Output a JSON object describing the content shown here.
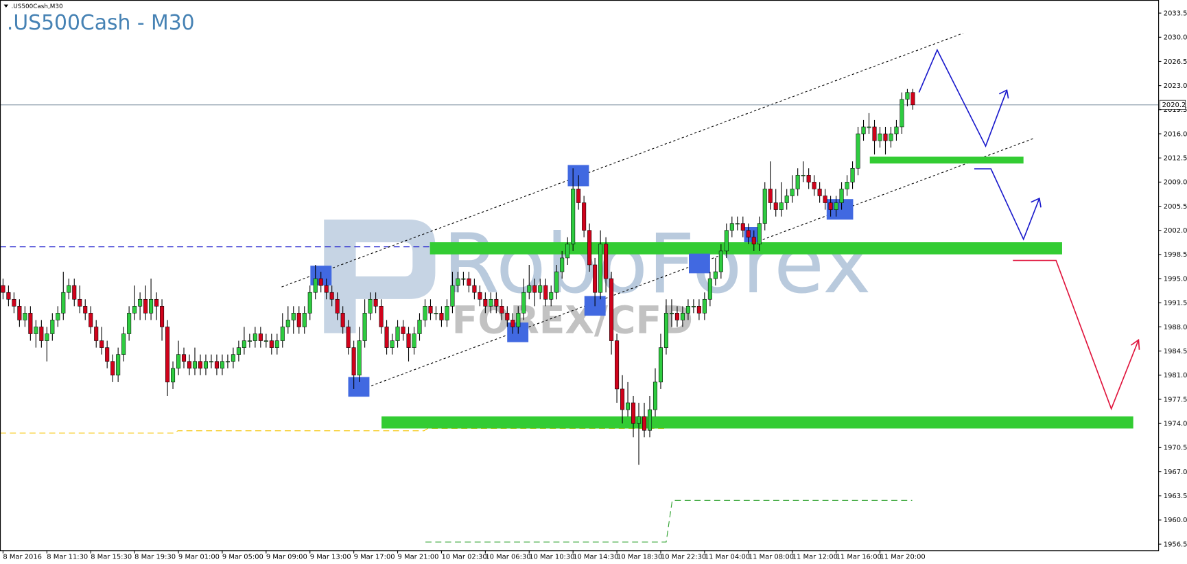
{
  "chart_data": {
    "type": "candlestick",
    "header": ".US500Cash,M30",
    "title": ".US500Cash - M30",
    "watermark": {
      "brand": "RoboForex",
      "tagline": "FOREX/CFD"
    },
    "current_price": 2020.2,
    "ylim": [
      1955.6,
      2035.4
    ],
    "yticks": [
      2033.5,
      {
        "value": 2030,
        "label": "2030.0"
      },
      2026.5,
      {
        "value": 2023,
        "label": "2023.0"
      },
      2019.5,
      {
        "value": 2016,
        "label": "2016.0"
      },
      2012.5,
      {
        "value": 2009,
        "label": "2009.0"
      },
      2005.5,
      {
        "value": 2002,
        "label": "2002.0"
      },
      1998.5,
      {
        "value": 1995,
        "label": "1995.0"
      },
      1991.5,
      {
        "value": 1988,
        "label": "1988.0"
      },
      1984.5,
      {
        "value": 1981,
        "label": "1981.0"
      },
      1977.5,
      {
        "value": 1974,
        "label": "1974.0"
      },
      1970.5,
      {
        "value": 1967,
        "label": "1967.0"
      },
      1963.5,
      {
        "value": 1960,
        "label": "1960.0"
      },
      1956.5
    ],
    "up_color": "#2ecc40",
    "down_color": "#d0021b",
    "categories": [
      "8 Mar 2016",
      null,
      null,
      null,
      null,
      null,
      null,
      null,
      "8 Mar 11:30",
      null,
      null,
      null,
      null,
      null,
      null,
      null,
      "8 Mar 15:30",
      null,
      null,
      null,
      null,
      null,
      null,
      null,
      "8 Mar 19:30",
      null,
      null,
      null,
      null,
      null,
      null,
      null,
      "9 Mar 01:00",
      null,
      null,
      null,
      null,
      null,
      null,
      null,
      "9 Mar 05:00",
      null,
      null,
      null,
      null,
      null,
      null,
      null,
      "9 Mar 09:00",
      null,
      null,
      null,
      null,
      null,
      null,
      null,
      "9 Mar 13:00",
      null,
      null,
      null,
      null,
      null,
      null,
      null,
      "9 Mar 17:00",
      null,
      null,
      null,
      null,
      null,
      null,
      null,
      "9 Mar 21:00",
      null,
      null,
      null,
      null,
      null,
      null,
      null,
      "10 Mar 02:30",
      null,
      null,
      null,
      null,
      null,
      null,
      null,
      "10 Mar 06:30",
      null,
      null,
      null,
      null,
      null,
      null,
      null,
      "10 Mar 10:30",
      null,
      null,
      null,
      null,
      null,
      null,
      null,
      "10 Mar 14:30",
      null,
      null,
      null,
      null,
      null,
      null,
      null,
      "10 Mar 18:30",
      null,
      null,
      null,
      null,
      null,
      null,
      null,
      "10 Mar 22:30",
      null,
      null,
      null,
      null,
      null,
      null,
      null,
      "11 Mar 04:00",
      null,
      null,
      null,
      null,
      null,
      null,
      null,
      "11 Mar 08:00",
      null,
      null,
      null,
      null,
      null,
      null,
      null,
      "11 Mar 12:00",
      null,
      null,
      null,
      null,
      null,
      null,
      null,
      "11 Mar 16:00",
      null,
      null,
      null,
      null,
      null,
      null,
      null,
      "11 Mar 20:00",
      null,
      null,
      null,
      null,
      null,
      null
    ],
    "candles": [
      [
        1994,
        1995,
        1992,
        1993
      ],
      [
        1993,
        1994,
        1991,
        1992
      ],
      [
        1992,
        1993,
        1990,
        1991
      ],
      [
        1991,
        1992,
        1988,
        1989
      ],
      [
        1989,
        1991,
        1988,
        1990
      ],
      [
        1990,
        1991,
        1986,
        1987
      ],
      [
        1987,
        1989,
        1985,
        1988
      ],
      [
        1988,
        1989,
        1985,
        1986
      ],
      [
        1986,
        1988,
        1983,
        1987
      ],
      [
        1987,
        1990,
        1986,
        1989
      ],
      [
        1989,
        1991,
        1988,
        1990
      ],
      [
        1990,
        1996,
        1989,
        1993
      ],
      [
        1993,
        1995,
        1992,
        1994
      ],
      [
        1994,
        1995,
        1991,
        1992
      ],
      [
        1992,
        1994,
        1990,
        1991
      ],
      [
        1991,
        1992,
        1989,
        1990
      ],
      [
        1990,
        1991,
        1987,
        1988
      ],
      [
        1988,
        1989,
        1985,
        1986
      ],
      [
        1986,
        1988,
        1984,
        1985
      ],
      [
        1985,
        1986,
        1982,
        1983
      ],
      [
        1983,
        1984,
        1980,
        1981
      ],
      [
        1981,
        1985,
        1980,
        1984
      ],
      [
        1984,
        1988,
        1983,
        1987
      ],
      [
        1987,
        1991,
        1986,
        1990
      ],
      [
        1990,
        1994,
        1989,
        1991
      ],
      [
        1991,
        1993,
        1989,
        1992
      ],
      [
        1992,
        1994,
        1989,
        1990
      ],
      [
        1990,
        1995,
        1989,
        1992
      ],
      [
        1992,
        1993,
        1989,
        1991
      ],
      [
        1991,
        1992,
        1986,
        1988
      ],
      [
        1988,
        1989,
        1978,
        1980
      ],
      [
        1980,
        1983,
        1979,
        1982
      ],
      [
        1982,
        1986,
        1981,
        1984
      ],
      [
        1984,
        1985,
        1982,
        1983
      ],
      [
        1983,
        1984,
        1981,
        1982
      ],
      [
        1982,
        1985,
        1981,
        1983
      ],
      [
        1983,
        1984,
        1981,
        1982
      ],
      [
        1982,
        1984,
        1981,
        1983
      ],
      [
        1983,
        1984,
        1982,
        1983
      ],
      [
        1983,
        1984,
        1981,
        1982
      ],
      [
        1982,
        1984,
        1981,
        1983
      ],
      [
        1983,
        1984,
        1982,
        1983
      ],
      [
        1983,
        1985,
        1982,
        1984
      ],
      [
        1984,
        1986,
        1983,
        1985
      ],
      [
        1985,
        1988,
        1984,
        1986
      ],
      [
        1986,
        1987,
        1985,
        1986
      ],
      [
        1986,
        1988,
        1985,
        1987
      ],
      [
        1987,
        1988,
        1985,
        1986
      ],
      [
        1986,
        1987,
        1985,
        1986
      ],
      [
        1986,
        1987,
        1984,
        1985
      ],
      [
        1985,
        1987,
        1984,
        1986
      ],
      [
        1986,
        1990,
        1985,
        1988
      ],
      [
        1988,
        1991,
        1987,
        1989
      ],
      [
        1989,
        1991,
        1987,
        1990
      ],
      [
        1990,
        1991,
        1987,
        1988
      ],
      [
        1988,
        1991,
        1987,
        1990
      ],
      [
        1990,
        1994,
        1989,
        1993
      ],
      [
        1993,
        1997,
        1992,
        1995
      ],
      [
        1995,
        1996,
        1993,
        1994
      ],
      [
        1994,
        1995,
        1992,
        1993
      ],
      [
        1993,
        1994,
        1991,
        1992
      ],
      [
        1992,
        1993,
        1989,
        1990
      ],
      [
        1990,
        1991,
        1987,
        1988
      ],
      [
        1988,
        1989,
        1984,
        1985
      ],
      [
        1985,
        1986,
        1979,
        1981
      ],
      [
        1981,
        1988,
        1980,
        1986
      ],
      [
        1986,
        1992,
        1985,
        1990
      ],
      [
        1990,
        1993,
        1989,
        1992
      ],
      [
        1992,
        1993,
        1990,
        1991
      ],
      [
        1991,
        1992,
        1987,
        1988
      ],
      [
        1988,
        1989,
        1984,
        1985
      ],
      [
        1985,
        1987,
        1984,
        1986
      ],
      [
        1986,
        1989,
        1985,
        1988
      ],
      [
        1988,
        1989,
        1986,
        1987
      ],
      [
        1987,
        1988,
        1983,
        1985
      ],
      [
        1985,
        1988,
        1984,
        1987
      ],
      [
        1987,
        1990,
        1986,
        1989
      ],
      [
        1989,
        1992,
        1988,
        1991
      ],
      [
        1991,
        1992,
        1989,
        1990
      ],
      [
        1990,
        1991,
        1989,
        1990
      ],
      [
        1990,
        1991,
        1988,
        1989
      ],
      [
        1989,
        1992,
        1988,
        1991
      ],
      [
        1991,
        1996,
        1990,
        1994
      ],
      [
        1994,
        1996,
        1993,
        1995
      ],
      [
        1995,
        1996,
        1994,
        1995
      ],
      [
        1995,
        1996,
        1993,
        1994
      ],
      [
        1994,
        1995,
        1992,
        1993
      ],
      [
        1993,
        1994,
        1991,
        1992
      ],
      [
        1992,
        1993,
        1990,
        1991
      ],
      [
        1991,
        1993,
        1990,
        1992
      ],
      [
        1992,
        1993,
        1990,
        1991
      ],
      [
        1991,
        1992,
        1989,
        1990
      ],
      [
        1990,
        1991,
        1988,
        1989
      ],
      [
        1989,
        1990,
        1987,
        1988
      ],
      [
        1988,
        1991,
        1987,
        1990
      ],
      [
        1990,
        1995,
        1989,
        1993
      ],
      [
        1993,
        1997,
        1992,
        1994
      ],
      [
        1994,
        1995,
        1991,
        1993
      ],
      [
        1993,
        1995,
        1992,
        1994
      ],
      [
        1994,
        1995,
        1991,
        1992
      ],
      [
        1992,
        1994,
        1991,
        1993
      ],
      [
        1993,
        1997,
        1992,
        1996
      ],
      [
        1996,
        1999,
        1995,
        1998
      ],
      [
        1998,
        2001,
        1997,
        2000
      ],
      [
        2000,
        2011,
        1999,
        2008
      ],
      [
        2008,
        2010,
        2005,
        2006
      ],
      [
        2006,
        2007,
        2001,
        2002
      ],
      [
        2002,
        2003,
        1996,
        1997
      ],
      [
        1997,
        1998,
        1991,
        1993
      ],
      [
        1993,
        2002,
        1992,
        2000
      ],
      [
        2000,
        2001,
        1993,
        1995
      ],
      [
        1995,
        1996,
        1984,
        1986
      ],
      [
        1986,
        1987,
        1977,
        1979
      ],
      [
        1979,
        1981,
        1974,
        1976
      ],
      [
        1976,
        1980,
        1975,
        1977
      ],
      [
        1977,
        1978,
        1972,
        1974
      ],
      [
        1974,
        1977,
        1968,
        1975
      ],
      [
        1975,
        1977,
        1972,
        1973
      ],
      [
        1973,
        1978,
        1972,
        1976
      ],
      [
        1976,
        1982,
        1975,
        1980
      ],
      [
        1980,
        1987,
        1979,
        1985
      ],
      [
        1985,
        1992,
        1984,
        1990
      ],
      [
        1990,
        1992,
        1988,
        1990
      ],
      [
        1990,
        1991,
        1988,
        1989
      ],
      [
        1989,
        1991,
        1988,
        1990
      ],
      [
        1990,
        1992,
        1989,
        1991
      ],
      [
        1991,
        1992,
        1990,
        1991
      ],
      [
        1991,
        1992,
        1989,
        1990
      ],
      [
        1990,
        1993,
        1989,
        1992
      ],
      [
        1992,
        1996,
        1991,
        1995
      ],
      [
        1995,
        1998,
        1994,
        1996
      ],
      [
        1996,
        2000,
        1995,
        1999
      ],
      [
        1999,
        2003,
        1998,
        2002
      ],
      [
        2002,
        2004,
        2001,
        2003
      ],
      [
        2003,
        2004,
        2002,
        2003
      ],
      [
        2003,
        2004,
        2001,
        2002
      ],
      [
        2002,
        2003,
        2000,
        2001
      ],
      [
        2001,
        2002,
        1999,
        2000
      ],
      [
        2000,
        2004,
        1999,
        2003
      ],
      [
        2003,
        2009,
        2002,
        2008
      ],
      [
        2008,
        2012,
        2005,
        2006
      ],
      [
        2006,
        2008,
        2004,
        2005
      ],
      [
        2005,
        2009,
        2004,
        2006
      ],
      [
        2006,
        2008,
        2005,
        2007
      ],
      [
        2007,
        2010,
        2006,
        2008
      ],
      [
        2008,
        2011,
        2007,
        2010
      ],
      [
        2010,
        2012,
        2009,
        2010
      ],
      [
        2010,
        2011,
        2008,
        2009
      ],
      [
        2009,
        2010,
        2007,
        2008
      ],
      [
        2008,
        2009,
        2006,
        2007
      ],
      [
        2007,
        2008,
        2005,
        2006
      ],
      [
        2006,
        2007,
        2004,
        2005
      ],
      [
        2005,
        2007,
        2004,
        2006
      ],
      [
        2006,
        2009,
        2005,
        2008
      ],
      [
        2008,
        2010,
        2007,
        2009
      ],
      [
        2009,
        2012,
        2008,
        2011
      ],
      [
        2011,
        2017,
        2010,
        2016
      ],
      [
        2016,
        2018,
        2015,
        2017
      ],
      [
        2017,
        2019,
        2016,
        2017
      ],
      [
        2017,
        2018,
        2013,
        2015
      ],
      [
        2015,
        2017,
        2014,
        2016
      ],
      [
        2016,
        2017,
        2013,
        2015
      ],
      [
        2015,
        2017,
        2014,
        2016
      ],
      [
        2016,
        2018,
        2015,
        2017
      ],
      [
        2017,
        2022,
        2016,
        2021
      ],
      [
        2021,
        2022.5,
        2020,
        2022
      ],
      [
        2022,
        2022.5,
        2019.5,
        2020.2
      ]
    ]
  }
}
